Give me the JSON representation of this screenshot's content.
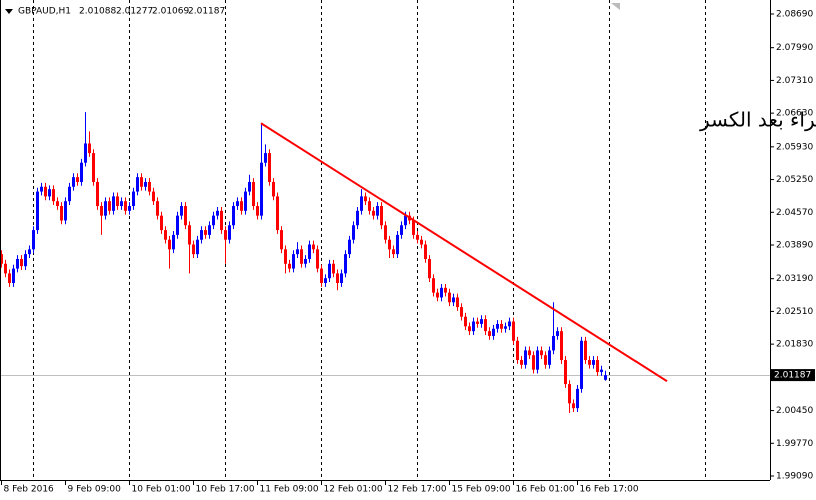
{
  "chart_data": {
    "type": "candlestick",
    "symbol": "GBPAUD,H1",
    "annotation": "تحت المراقبة للشراء بعد الكسر",
    "up_color": "#0000ff",
    "down_color": "#ff0000",
    "xlim": [
      0,
      192.25
    ],
    "ylim": [
      1.99007,
      2.08981
    ],
    "yticks": [
      {
        "value": 2.0869,
        "label": "2.08690"
      },
      {
        "value": 2.0799,
        "label": "2.07990"
      },
      {
        "value": 2.0731,
        "label": "2.07310"
      },
      {
        "value": 2.0663,
        "label": "2.06630"
      },
      {
        "value": 2.0593,
        "label": "2.05930"
      },
      {
        "value": 2.0525,
        "label": "2.05250"
      },
      {
        "value": 2.0457,
        "label": "2.04570"
      },
      {
        "value": 2.0389,
        "label": "2.03890"
      },
      {
        "value": 2.0319,
        "label": "2.03190"
      },
      {
        "value": 2.0251,
        "label": "2.02510"
      },
      {
        "value": 2.0183,
        "label": "2.01830"
      },
      {
        "value": 2.0045,
        "label": "2.00450"
      },
      {
        "value": 1.9977,
        "label": "1.99770"
      },
      {
        "value": 1.9909,
        "label": "1.99090"
      }
    ],
    "xticks": [
      {
        "value": 0,
        "label": "8 Feb 2016"
      },
      {
        "value": 16,
        "label": "9 Feb 09:00"
      },
      {
        "value": 32,
        "label": "10 Feb 01:00"
      },
      {
        "value": 48,
        "label": "10 Feb 17:00"
      },
      {
        "value": 64,
        "label": "11 Feb 09:00"
      },
      {
        "value": 80,
        "label": "12 Feb 01:00"
      },
      {
        "value": 96,
        "label": "12 Feb 17:00"
      },
      {
        "value": 112,
        "label": "15 Feb 09:00"
      },
      {
        "value": 128,
        "label": "16 Feb 01:00"
      },
      {
        "value": 144,
        "label": "16 Feb 17:00"
      }
    ],
    "xgrid": [
      8,
      32,
      56,
      80,
      104,
      128,
      152,
      176
    ],
    "trendline": {
      "color": "#ff0000",
      "x": [
        65,
        166.5
      ],
      "y": [
        2.0642,
        2.0106
      ]
    },
    "candles": [
      [
        2.037,
        2.0378,
        2.0342,
        2.035
      ],
      [
        2.035,
        2.0358,
        2.0322,
        2.033
      ],
      [
        2.033,
        2.0338,
        2.0302,
        2.031
      ],
      [
        2.031,
        2.0348,
        2.0302,
        2.034
      ],
      [
        2.034,
        2.0368,
        2.0332,
        2.036
      ],
      [
        2.036,
        2.0368,
        2.0337,
        2.0345
      ],
      [
        2.0345,
        2.0378,
        2.0337,
        2.037
      ],
      [
        2.037,
        2.0388,
        2.0362,
        2.038
      ],
      [
        2.038,
        2.0428,
        2.0372,
        2.042
      ],
      [
        2.042,
        2.0508,
        2.0412,
        2.05
      ],
      [
        2.05,
        2.0518,
        2.0492,
        2.051
      ],
      [
        2.051,
        2.0518,
        2.0482,
        2.049
      ],
      [
        2.049,
        2.0513,
        2.0482,
        2.0505
      ],
      [
        2.0505,
        2.0513,
        2.0472,
        2.048
      ],
      [
        2.048,
        2.0488,
        2.0462,
        2.047
      ],
      [
        2.047,
        2.0478,
        2.0432,
        2.044
      ],
      [
        2.044,
        2.0488,
        2.0432,
        2.048
      ],
      [
        2.048,
        2.0518,
        2.0472,
        2.051
      ],
      [
        2.051,
        2.0538,
        2.0502,
        2.053
      ],
      [
        2.053,
        2.0538,
        2.0512,
        2.052
      ],
      [
        2.052,
        2.0568,
        2.0512,
        2.056
      ],
      [
        2.056,
        2.0665,
        2.0552,
        2.06
      ],
      [
        2.06,
        2.0625,
        2.0572,
        2.058
      ],
      [
        2.058,
        2.0588,
        2.0512,
        2.052
      ],
      [
        2.052,
        2.0528,
        2.0462,
        2.047
      ],
      [
        2.047,
        2.0478,
        2.041,
        2.045
      ],
      [
        2.045,
        2.0488,
        2.0442,
        2.048
      ],
      [
        2.048,
        2.0488,
        2.0452,
        2.046
      ],
      [
        2.046,
        2.0498,
        2.0452,
        2.049
      ],
      [
        2.049,
        2.0498,
        2.0462,
        2.047
      ],
      [
        2.047,
        2.0488,
        2.0462,
        2.048
      ],
      [
        2.048,
        2.0488,
        2.0452,
        2.046
      ],
      [
        2.046,
        2.0478,
        2.0452,
        2.047
      ],
      [
        2.047,
        2.0508,
        2.0462,
        2.05
      ],
      [
        2.05,
        2.0538,
        2.0492,
        2.053
      ],
      [
        2.053,
        2.0538,
        2.0502,
        2.051
      ],
      [
        2.051,
        2.0528,
        2.0502,
        2.052
      ],
      [
        2.052,
        2.0528,
        2.0492,
        2.05
      ],
      [
        2.05,
        2.0508,
        2.0472,
        2.048
      ],
      [
        2.048,
        2.0488,
        2.0442,
        2.045
      ],
      [
        2.045,
        2.0458,
        2.0412,
        2.042
      ],
      [
        2.042,
        2.0428,
        2.0392,
        2.04
      ],
      [
        2.04,
        2.0408,
        2.034,
        2.038
      ],
      [
        2.038,
        2.0418,
        2.0372,
        2.041
      ],
      [
        2.041,
        2.0458,
        2.0402,
        2.045
      ],
      [
        2.045,
        2.0478,
        2.0442,
        2.047
      ],
      [
        2.047,
        2.0478,
        2.0422,
        2.043
      ],
      [
        2.043,
        2.0438,
        2.033,
        2.039
      ],
      [
        2.039,
        2.0398,
        2.0362,
        2.037
      ],
      [
        2.037,
        2.0408,
        2.0362,
        2.04
      ],
      [
        2.04,
        2.0428,
        2.0392,
        2.042
      ],
      [
        2.042,
        2.0428,
        2.0402,
        2.041
      ],
      [
        2.041,
        2.0438,
        2.0402,
        2.043
      ],
      [
        2.043,
        2.0458,
        2.0422,
        2.045
      ],
      [
        2.045,
        2.0468,
        2.0442,
        2.046
      ],
      [
        2.046,
        2.0468,
        2.0412,
        2.042
      ],
      [
        2.042,
        2.0428,
        2.035,
        2.04
      ],
      [
        2.04,
        2.0438,
        2.0392,
        2.043
      ],
      [
        2.043,
        2.0478,
        2.0422,
        2.047
      ],
      [
        2.047,
        2.0488,
        2.0462,
        2.048
      ],
      [
        2.048,
        2.0488,
        2.0452,
        2.046
      ],
      [
        2.046,
        2.0508,
        2.0452,
        2.05
      ],
      [
        2.05,
        2.0535,
        2.0492,
        2.052
      ],
      [
        2.052,
        2.0528,
        2.0462,
        2.047
      ],
      [
        2.047,
        2.0478,
        2.0442,
        2.045
      ],
      [
        2.045,
        2.0642,
        2.0442,
        2.056
      ],
      [
        2.056,
        2.0598,
        2.0552,
        2.058
      ],
      [
        2.058,
        2.0588,
        2.0512,
        2.052
      ],
      [
        2.052,
        2.0528,
        2.0482,
        2.049
      ],
      [
        2.049,
        2.0498,
        2.0412,
        2.042
      ],
      [
        2.042,
        2.0428,
        2.0372,
        2.038
      ],
      [
        2.038,
        2.0388,
        2.033,
        2.035
      ],
      [
        2.035,
        2.0358,
        2.0332,
        2.034
      ],
      [
        2.034,
        2.0378,
        2.0332,
        2.037
      ],
      [
        2.037,
        2.0395,
        2.0362,
        2.038
      ],
      [
        2.038,
        2.0388,
        2.0342,
        2.035
      ],
      [
        2.035,
        2.0368,
        2.0342,
        2.036
      ],
      [
        2.036,
        2.0398,
        2.0352,
        2.039
      ],
      [
        2.039,
        2.0398,
        2.0372,
        2.038
      ],
      [
        2.038,
        2.0388,
        2.0332,
        2.034
      ],
      [
        2.034,
        2.0348,
        2.0302,
        2.031
      ],
      [
        2.031,
        2.0328,
        2.0302,
        2.032
      ],
      [
        2.032,
        2.0358,
        2.0312,
        2.035
      ],
      [
        2.035,
        2.0358,
        2.0322,
        2.033
      ],
      [
        2.033,
        2.0338,
        2.0295,
        2.031
      ],
      [
        2.031,
        2.0338,
        2.0302,
        2.033
      ],
      [
        2.033,
        2.0378,
        2.0322,
        2.037
      ],
      [
        2.037,
        2.0408,
        2.0362,
        2.04
      ],
      [
        2.04,
        2.0438,
        2.0392,
        2.043
      ],
      [
        2.043,
        2.0468,
        2.0422,
        2.046
      ],
      [
        2.046,
        2.0505,
        2.0452,
        2.049
      ],
      [
        2.049,
        2.0498,
        2.0472,
        2.048
      ],
      [
        2.048,
        2.0488,
        2.0452,
        2.046
      ],
      [
        2.046,
        2.0468,
        2.0442,
        2.045
      ],
      [
        2.045,
        2.0478,
        2.0442,
        2.047
      ],
      [
        2.047,
        2.0478,
        2.0422,
        2.043
      ],
      [
        2.043,
        2.0438,
        2.0392,
        2.04
      ],
      [
        2.04,
        2.0408,
        2.0362,
        2.038
      ],
      [
        2.038,
        2.0388,
        2.0362,
        2.037
      ],
      [
        2.037,
        2.0418,
        2.0362,
        2.041
      ],
      [
        2.041,
        2.0438,
        2.0402,
        2.043
      ],
      [
        2.043,
        2.0458,
        2.0422,
        2.045
      ],
      [
        2.045,
        2.0458,
        2.0432,
        2.044
      ],
      [
        2.044,
        2.0448,
        2.0402,
        2.041
      ],
      [
        2.041,
        2.0418,
        2.0392,
        2.04
      ],
      [
        2.04,
        2.0408,
        2.0382,
        2.039
      ],
      [
        2.039,
        2.0398,
        2.0352,
        2.036
      ],
      [
        2.036,
        2.0368,
        2.0312,
        2.032
      ],
      [
        2.032,
        2.0328,
        2.0282,
        2.029
      ],
      [
        2.029,
        2.0298,
        2.0272,
        2.028
      ],
      [
        2.028,
        2.0308,
        2.0272,
        2.03
      ],
      [
        2.03,
        2.0308,
        2.0282,
        2.029
      ],
      [
        2.029,
        2.0298,
        2.0262,
        2.027
      ],
      [
        2.027,
        2.0288,
        2.0262,
        2.028
      ],
      [
        2.028,
        2.0288,
        2.0252,
        2.026
      ],
      [
        2.026,
        2.0268,
        2.0232,
        2.024
      ],
      [
        2.024,
        2.0248,
        2.0212,
        2.022
      ],
      [
        2.022,
        2.0228,
        2.0202,
        2.021
      ],
      [
        2.021,
        2.0238,
        2.0202,
        2.023
      ],
      [
        2.023,
        2.0238,
        2.0217,
        2.0225
      ],
      [
        2.0225,
        2.0243,
        2.0217,
        2.0235
      ],
      [
        2.0235,
        2.0243,
        2.0202,
        2.021
      ],
      [
        2.021,
        2.0218,
        2.0192,
        2.02
      ],
      [
        2.02,
        2.0223,
        2.0192,
        2.0215
      ],
      [
        2.0215,
        2.0233,
        2.0207,
        2.0225
      ],
      [
        2.0225,
        2.0233,
        2.0207,
        2.0215
      ],
      [
        2.0215,
        2.0228,
        2.0207,
        2.022
      ],
      [
        2.022,
        2.0238,
        2.0212,
        2.023
      ],
      [
        2.023,
        2.0238,
        2.0182,
        2.019
      ],
      [
        2.019,
        2.0198,
        2.0142,
        2.015
      ],
      [
        2.015,
        2.0158,
        2.0132,
        2.014
      ],
      [
        2.014,
        2.0178,
        2.0132,
        2.017
      ],
      [
        2.017,
        2.0178,
        2.0152,
        2.016
      ],
      [
        2.016,
        2.0168,
        2.0122,
        2.013
      ],
      [
        2.013,
        2.0178,
        2.0122,
        2.017
      ],
      [
        2.017,
        2.0178,
        2.0152,
        2.016
      ],
      [
        2.016,
        2.0168,
        2.0132,
        2.014
      ],
      [
        2.014,
        2.0178,
        2.0132,
        2.017
      ],
      [
        2.017,
        2.027,
        2.0162,
        2.02
      ],
      [
        2.02,
        2.0218,
        2.0192,
        2.021
      ],
      [
        2.021,
        2.0218,
        2.0142,
        2.015
      ],
      [
        2.015,
        2.0158,
        2.0092,
        2.01
      ],
      [
        2.01,
        2.0108,
        2.004,
        2.006
      ],
      [
        2.006,
        2.0068,
        2.0042,
        2.005
      ],
      [
        2.005,
        2.0098,
        2.0042,
        2.009
      ],
      [
        2.009,
        2.0198,
        2.0082,
        2.019
      ],
      [
        2.019,
        2.0198,
        2.0142,
        2.015
      ],
      [
        2.015,
        2.0158,
        2.0132,
        2.014
      ],
      [
        2.014,
        2.0158,
        2.0132,
        2.015
      ],
      [
        2.015,
        2.0158,
        2.0117,
        2.0125
      ],
      [
        2.0125,
        2.0138,
        2.0117,
        2.013
      ],
      [
        2.01088,
        2.01277,
        2.01069,
        2.01187
      ]
    ]
  }
}
